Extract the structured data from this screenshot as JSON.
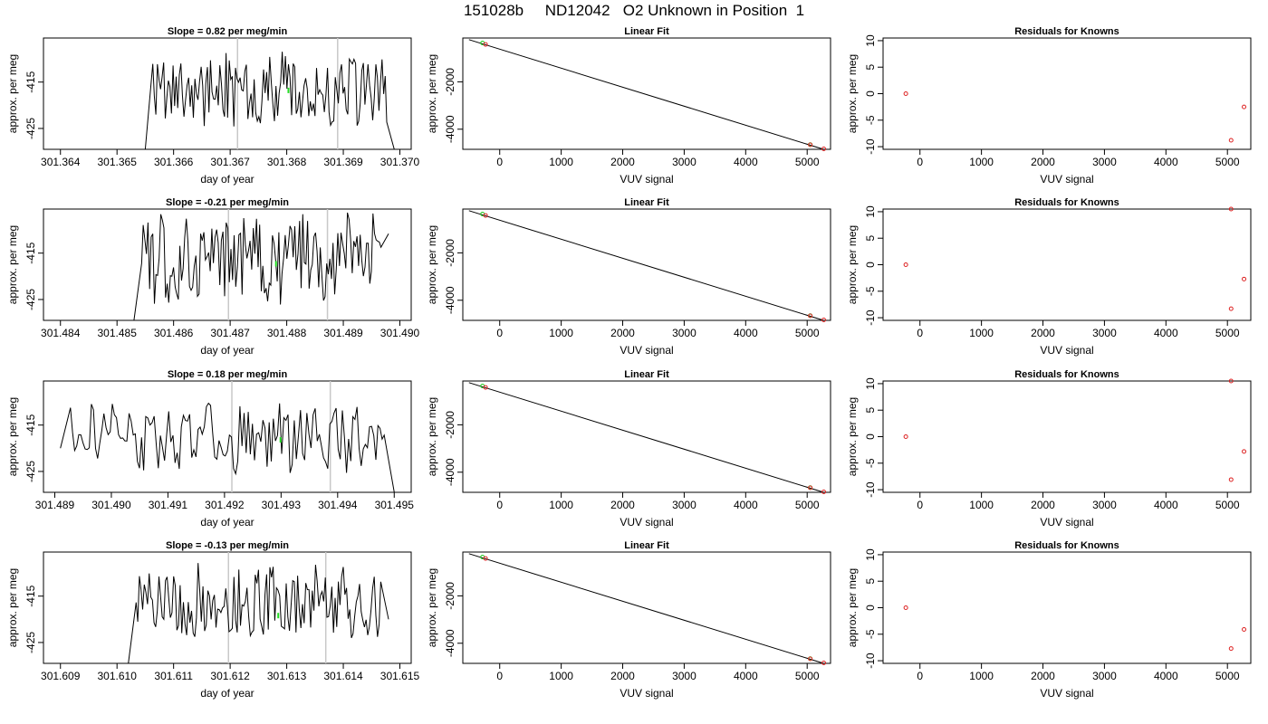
{
  "title": "151028b     ND12042   O2 Unknown in Position  1",
  "chart_data": [
    {
      "panel": "row1-timeseries",
      "type": "line",
      "title": "Slope =  0.82  per meg/min",
      "xlabel": "day of year",
      "ylabel": "approx. per meg",
      "xlim": [
        301.3637,
        301.3702
      ],
      "ylim": [
        -429.5,
        -405.5
      ],
      "xticks": [
        "301.364",
        "301.365",
        "301.366",
        "301.367",
        "301.368",
        "301.369",
        "301.370"
      ],
      "yticks": [
        "-415",
        "-425"
      ],
      "ytick_values": [
        -415,
        -425
      ],
      "xstart": 301.3655,
      "xend": 301.3699,
      "wave_seed": 1,
      "wave_min": -424.6,
      "wave_max": -408.8,
      "drop_start": -429.9,
      "drop_end": -429.9,
      "vlines": [
        301.36713,
        301.3689
      ],
      "green_marker": {
        "x": 301.36803,
        "y": -416.8
      }
    },
    {
      "panel": "row1-linear-fit",
      "type": "scatter",
      "title": "Linear Fit",
      "xlabel": "VUV signal",
      "ylabel": "approx. per meg",
      "xlim": [
        -600,
        5380
      ],
      "ylim": [
        -4850,
        -150
      ],
      "xticks": [
        "0",
        "1000",
        "2000",
        "3000",
        "4000",
        "5000"
      ],
      "xtick_values": [
        0,
        1000,
        2000,
        3000,
        4000,
        5000
      ],
      "yticks": [
        "-2000",
        "-4000"
      ],
      "ytick_values": [
        -2000,
        -4000
      ],
      "fit_line": [
        [
          -500,
          -220
        ],
        [
          5280,
          -4860
        ]
      ],
      "red_points": [
        [
          -230,
          -420
        ],
        [
          5050,
          -4660
        ],
        [
          5270,
          -4830
        ]
      ],
      "green_points": [
        [
          -280,
          -360
        ],
        [
          5050,
          -4650
        ]
      ]
    },
    {
      "panel": "row1-residuals",
      "type": "scatter",
      "title": "Residuals for Knowns",
      "xlabel": "VUV signal",
      "ylabel": "approx. per meg",
      "xlim": [
        -600,
        5380
      ],
      "ylim": [
        -10.5,
        10.5
      ],
      "xticks": [
        "0",
        "1000",
        "2000",
        "3000",
        "4000",
        "5000"
      ],
      "xtick_values": [
        0,
        1000,
        2000,
        3000,
        4000,
        5000
      ],
      "yticks": [
        "10",
        "5",
        "0",
        "-5",
        "-10"
      ],
      "ytick_values": [
        10,
        5,
        0,
        -5,
        -10
      ],
      "red_points": [
        [
          -230,
          0
        ],
        [
          5060,
          -8.8
        ],
        [
          5270,
          -2.5
        ]
      ]
    },
    {
      "panel": "row2-timeseries",
      "type": "line",
      "title": "Slope =  -0.21  per meg/min",
      "xlabel": "day of year",
      "ylabel": "approx. per meg",
      "xlim": [
        301.4837,
        301.4902
      ],
      "ylim": [
        -429.5,
        -405.5
      ],
      "xticks": [
        "301.484",
        "301.485",
        "301.486",
        "301.487",
        "301.488",
        "301.489",
        "301.490"
      ],
      "yticks": [
        "-415",
        "-425"
      ],
      "ytick_values": [
        -415,
        -425
      ],
      "xstart": 301.4853,
      "xend": 301.4898,
      "wave_seed": 2,
      "wave_min": -426.0,
      "wave_max": -406.0,
      "drop_start": -429.9,
      "drop_end": -410.8,
      "vlines": [
        301.48697,
        301.48872
      ],
      "green_marker": {
        "x": 301.48781,
        "y": -417.3
      }
    },
    {
      "panel": "row2-linear-fit",
      "type": "scatter",
      "title": "Linear Fit",
      "xlabel": "VUV signal",
      "ylabel": "approx. per meg",
      "xlim": [
        -600,
        5380
      ],
      "ylim": [
        -4850,
        -150
      ],
      "xticks": [
        "0",
        "1000",
        "2000",
        "3000",
        "4000",
        "5000"
      ],
      "xtick_values": [
        0,
        1000,
        2000,
        3000,
        4000,
        5000
      ],
      "yticks": [
        "-2000",
        "-4000"
      ],
      "ytick_values": [
        -2000,
        -4000
      ],
      "fit_line": [
        [
          -500,
          -220
        ],
        [
          5280,
          -4860
        ]
      ],
      "red_points": [
        [
          -230,
          -420
        ],
        [
          5050,
          -4660
        ],
        [
          5270,
          -4830
        ]
      ],
      "green_points": [
        [
          -280,
          -360
        ],
        [
          5050,
          -4650
        ]
      ]
    },
    {
      "panel": "row2-residuals",
      "type": "scatter",
      "title": "Residuals for Knowns",
      "xlabel": "VUV signal",
      "ylabel": "approx. per meg",
      "xlim": [
        -600,
        5380
      ],
      "ylim": [
        -10.5,
        10.5
      ],
      "xticks": [
        "0",
        "1000",
        "2000",
        "3000",
        "4000",
        "5000"
      ],
      "xtick_values": [
        0,
        1000,
        2000,
        3000,
        4000,
        5000
      ],
      "yticks": [
        "10",
        "5",
        "0",
        "-5",
        "-10"
      ],
      "ytick_values": [
        10,
        5,
        0,
        -5,
        -10
      ],
      "red_points": [
        [
          -230,
          0
        ],
        [
          5060,
          -8.3
        ],
        [
          5270,
          -2.7
        ],
        [
          5060,
          10.8
        ]
      ]
    },
    {
      "panel": "row3-timeseries",
      "type": "line",
      "title": "Slope =  0.18  per meg/min",
      "xlabel": "day of year",
      "ylabel": "approx. per meg",
      "xlim": [
        301.4888,
        301.4953
      ],
      "ylim": [
        -429.5,
        -405.5
      ],
      "xticks": [
        "301.489",
        "301.490",
        "301.491",
        "301.492",
        "301.493",
        "301.494",
        "301.495"
      ],
      "yticks": [
        "-415",
        "-425"
      ],
      "ytick_values": [
        -415,
        -425
      ],
      "xstart": 301.4891,
      "xend": 301.495,
      "wave_seed": 3,
      "wave_min": -425.2,
      "wave_max": -410.0,
      "drop_start": -420.0,
      "drop_end": -429.9,
      "vlines": [
        301.49213,
        301.49387
      ],
      "green_marker": {
        "x": 301.49299,
        "y": -418.2
      }
    },
    {
      "panel": "row3-linear-fit",
      "type": "scatter",
      "title": "Linear Fit",
      "xlabel": "VUV signal",
      "ylabel": "approx. per meg",
      "xlim": [
        -600,
        5380
      ],
      "ylim": [
        -4850,
        -150
      ],
      "xticks": [
        "0",
        "1000",
        "2000",
        "3000",
        "4000",
        "5000"
      ],
      "xtick_values": [
        0,
        1000,
        2000,
        3000,
        4000,
        5000
      ],
      "yticks": [
        "-2000",
        "-4000"
      ],
      "ytick_values": [
        -2000,
        -4000
      ],
      "fit_line": [
        [
          -500,
          -220
        ],
        [
          5280,
          -4860
        ]
      ],
      "red_points": [
        [
          -230,
          -420
        ],
        [
          5050,
          -4660
        ],
        [
          5270,
          -4830
        ]
      ],
      "green_points": [
        [
          -280,
          -360
        ],
        [
          5050,
          -4650
        ]
      ]
    },
    {
      "panel": "row3-residuals",
      "type": "scatter",
      "title": "Residuals for Knowns",
      "xlabel": "VUV signal",
      "ylabel": "approx. per meg",
      "xlim": [
        -600,
        5380
      ],
      "ylim": [
        -10.5,
        10.5
      ],
      "xticks": [
        "0",
        "1000",
        "2000",
        "3000",
        "4000",
        "5000"
      ],
      "xtick_values": [
        0,
        1000,
        2000,
        3000,
        4000,
        5000
      ],
      "yticks": [
        "10",
        "5",
        "0",
        "-5",
        "-10"
      ],
      "ytick_values": [
        10,
        5,
        0,
        -5,
        -10
      ],
      "red_points": [
        [
          -230,
          0
        ],
        [
          5060,
          -8.1
        ],
        [
          5270,
          -2.8
        ],
        [
          5060,
          10.8
        ]
      ]
    },
    {
      "panel": "row4-timeseries",
      "type": "line",
      "title": "Slope =  -0.13  per meg/min",
      "xlabel": "day of year",
      "ylabel": "approx. per meg",
      "xlim": [
        301.6087,
        301.6152
      ],
      "ylim": [
        -429.5,
        -405.5
      ],
      "xticks": [
        "301.609",
        "301.610",
        "301.611",
        "301.612",
        "301.613",
        "301.614",
        "301.615"
      ],
      "yticks": [
        "-415",
        "-425"
      ],
      "ytick_values": [
        -415,
        -425
      ],
      "xstart": 301.6102,
      "xend": 301.6148,
      "wave_seed": 4,
      "wave_min": -424.8,
      "wave_max": -408.0,
      "drop_start": -429.9,
      "drop_end": -420.0,
      "vlines": [
        301.61197,
        301.61369
      ],
      "green_marker": {
        "x": 301.61285,
        "y": -419.2
      }
    },
    {
      "panel": "row4-linear-fit",
      "type": "scatter",
      "title": "Linear Fit",
      "xlabel": "VUV signal",
      "ylabel": "approx. per meg",
      "xlim": [
        -600,
        5380
      ],
      "ylim": [
        -4850,
        -150
      ],
      "xticks": [
        "0",
        "1000",
        "2000",
        "3000",
        "4000",
        "5000"
      ],
      "xtick_values": [
        0,
        1000,
        2000,
        3000,
        4000,
        5000
      ],
      "yticks": [
        "-2000",
        "-4000"
      ],
      "ytick_values": [
        -2000,
        -4000
      ],
      "fit_line": [
        [
          -500,
          -220
        ],
        [
          5280,
          -4860
        ]
      ],
      "red_points": [
        [
          -230,
          -420
        ],
        [
          5050,
          -4660
        ],
        [
          5270,
          -4830
        ]
      ],
      "green_points": [
        [
          -280,
          -360
        ],
        [
          5050,
          -4650
        ]
      ]
    },
    {
      "panel": "row4-residuals",
      "type": "scatter",
      "title": "Residuals for Knowns",
      "xlabel": "VUV signal",
      "ylabel": "approx. per meg",
      "xlim": [
        -600,
        5380
      ],
      "ylim": [
        -10.5,
        10.5
      ],
      "xticks": [
        "0",
        "1000",
        "2000",
        "3000",
        "4000",
        "5000"
      ],
      "xtick_values": [
        0,
        1000,
        2000,
        3000,
        4000,
        5000
      ],
      "yticks": [
        "10",
        "5",
        "0",
        "-5",
        "-10"
      ],
      "ytick_values": [
        10,
        5,
        0,
        -5,
        -10
      ],
      "red_points": [
        [
          -230,
          0
        ],
        [
          5060,
          -7.7
        ],
        [
          5270,
          -4.1
        ]
      ]
    }
  ]
}
